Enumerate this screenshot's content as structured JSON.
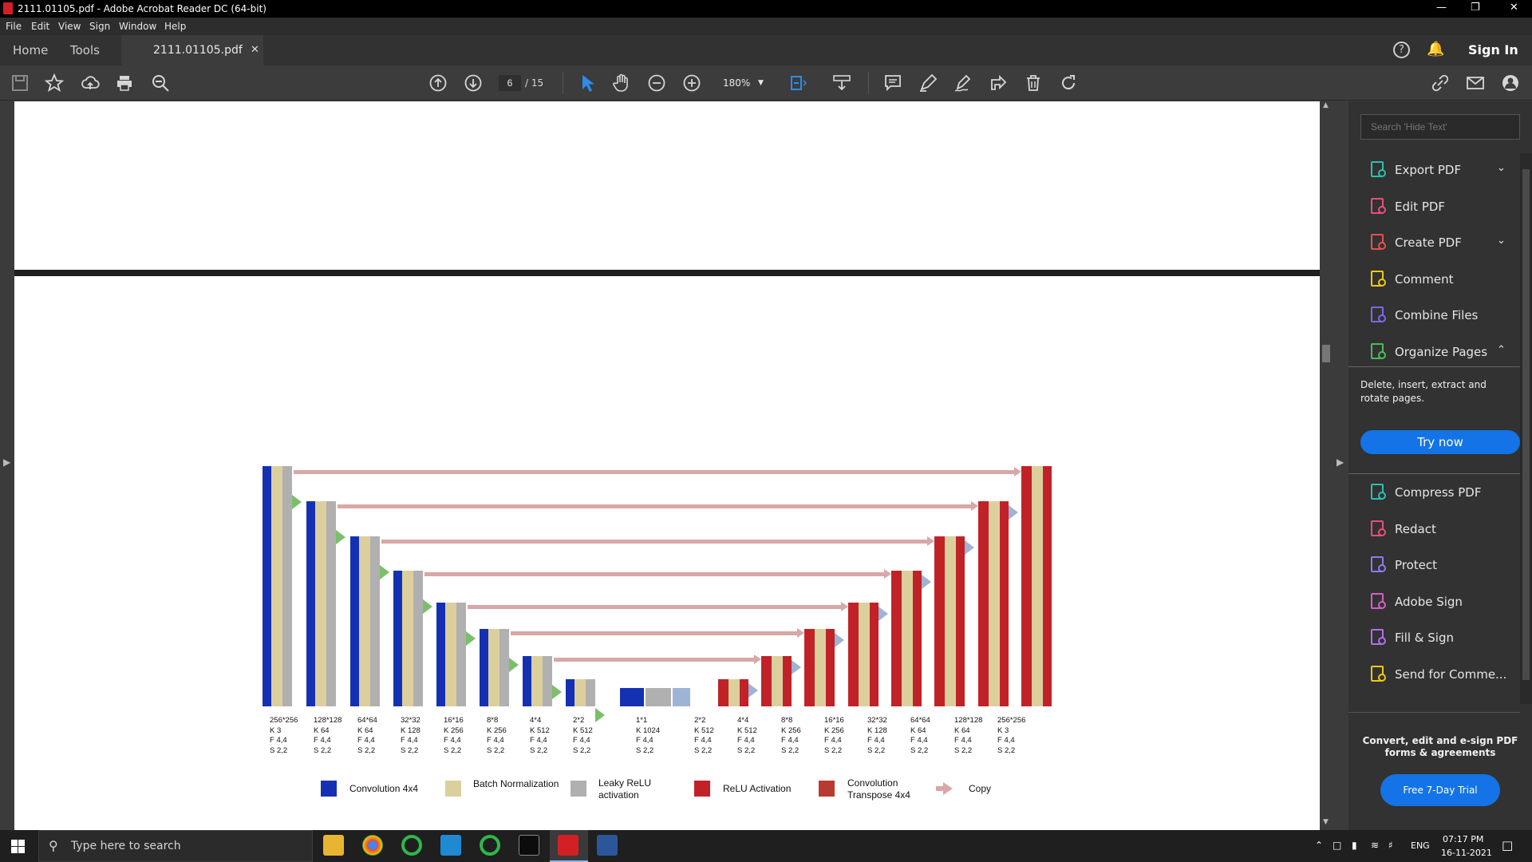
{
  "window": {
    "title": "2111.01105.pdf - Adobe Acrobat Reader DC (64-bit)"
  },
  "menu": [
    "File",
    "Edit",
    "View",
    "Sign",
    "Window",
    "Help"
  ],
  "tabs": {
    "home": "Home",
    "tools": "Tools",
    "document": "2111.01105.pdf"
  },
  "header": {
    "sign_in": "Sign In"
  },
  "toolbar": {
    "page_current": "6",
    "page_total": "/ 15",
    "zoom": "180%"
  },
  "diagram": {
    "labels": [
      [
        "256*256",
        "K 3",
        "F 4,4",
        "S 2,2"
      ],
      [
        "128*128",
        "K 64",
        "F 4,4",
        "S 2,2"
      ],
      [
        "64*64",
        "K 64",
        "F 4,4",
        "S 2,2"
      ],
      [
        "32*32",
        "K 128",
        "F 4,4",
        "S 2,2"
      ],
      [
        "16*16",
        "K 256",
        "F 4,4",
        "S 2,2"
      ],
      [
        "8*8",
        "K 256",
        "F 4,4",
        "S 2,2"
      ],
      [
        "4*4",
        "K 512",
        "F 4,4",
        "S 2,2"
      ],
      [
        "2*2",
        "K 512",
        "F 4,4",
        "S 2,2"
      ],
      [
        "1*1",
        "K 1024",
        "F 4,4",
        "S 2,2"
      ],
      [
        "2*2",
        "K 512",
        "F 4,4",
        "S 2,2"
      ],
      [
        "4*4",
        "K 512",
        "F 4,4",
        "S 2,2"
      ],
      [
        "8*8",
        "K 256",
        "F 4,4",
        "S 2,2"
      ],
      [
        "16*16",
        "K 256",
        "F 4,4",
        "S 2,2"
      ],
      [
        "32*32",
        "K 128",
        "F 4,4",
        "S 2,2"
      ],
      [
        "64*64",
        "K 64",
        "F 4,4",
        "S 2,2"
      ],
      [
        "128*128",
        "K 64",
        "F 4,4",
        "S 2,2"
      ],
      [
        "256*256",
        "K 3",
        "F 4,4",
        "S 2,2"
      ]
    ],
    "legend": {
      "conv": "Convolution  4x4",
      "bn": "Batch Normalization",
      "leaky_1": "Leaky ReLU",
      "leaky_2": "activation",
      "relu": "ReLU Activation",
      "convt_1": "Convolution",
      "convt_2": "Transpose  4x4",
      "copy": "Copy"
    },
    "colors": {
      "conv": "#1431b3",
      "bn": "#dccf9e",
      "leaky": "#b0b0b0",
      "relu": "#c02228",
      "convt": "#b83a30",
      "copy": "#d8a7a7"
    }
  },
  "right_panel": {
    "search_placeholder": "Search 'Hide Text'",
    "tools": [
      {
        "label": "Export PDF",
        "icon": "export-pdf-icon",
        "color": "#2dbfae"
      },
      {
        "label": "Edit PDF",
        "icon": "edit-pdf-icon",
        "color": "#e84f7a"
      },
      {
        "label": "Create PDF",
        "icon": "create-pdf-icon",
        "color": "#e84f4f"
      },
      {
        "label": "Comment",
        "icon": "comment-icon",
        "color": "#f2c811"
      },
      {
        "label": "Combine Files",
        "icon": "combine-files-icon",
        "color": "#7b68ee"
      },
      {
        "label": "Organize Pages",
        "icon": "organize-pages-icon",
        "color": "#4cbb5a"
      }
    ],
    "organize_desc": "Delete, insert, extract and rotate pages.",
    "try_now": "Try now",
    "tools2": [
      {
        "label": "Compress PDF",
        "icon": "compress-pdf-icon",
        "color": "#2dbfae"
      },
      {
        "label": "Redact",
        "icon": "redact-icon",
        "color": "#e84f7a"
      },
      {
        "label": "Protect",
        "icon": "protect-icon",
        "color": "#8c7bf0"
      },
      {
        "label": "Adobe Sign",
        "icon": "adobe-sign-icon",
        "color": "#d95cc7"
      },
      {
        "label": "Fill & Sign",
        "icon": "fill-sign-icon",
        "color": "#b06ef0"
      },
      {
        "label": "Send for Comme...",
        "icon": "send-for-comment-icon",
        "color": "#f2c811"
      }
    ],
    "promo": "Convert, edit and e-sign PDF forms & agreements",
    "free_trial": "Free 7-Day Trial"
  },
  "taskbar": {
    "search": "Type here to search",
    "lang": "ENG",
    "time": "07:17 PM",
    "date": "16-11-2021"
  }
}
